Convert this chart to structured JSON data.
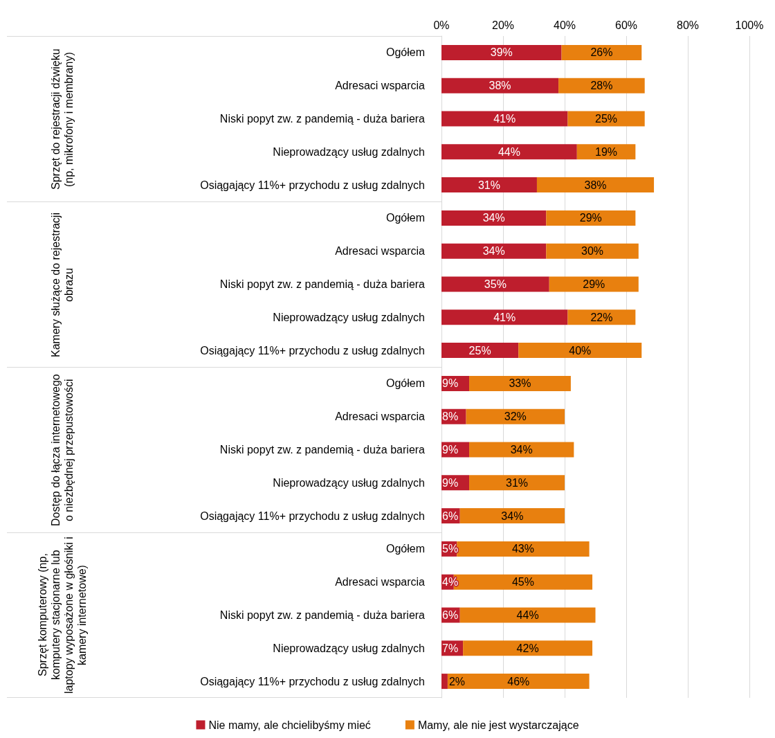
{
  "chart_data": {
    "type": "bar",
    "orientation": "horizontal",
    "stacked": true,
    "categories": [
      "Ogółem",
      "Adresaci wsparcia",
      "Niski popyt zw. z pandemią - duża bariera",
      "Nieprowadzący usług zdalnych",
      "Osiągający 11%+ przychodu z usług zdalnych",
      "Ogółem",
      "Adresaci wsparcia",
      "Niski popyt zw. z pandemią - duża bariera",
      "Nieprowadzący usług zdalnych",
      "Osiągający 11%+ przychodu z usług zdalnych",
      "Ogółem",
      "Adresaci wsparcia",
      "Niski popyt zw. z pandemią - duża bariera",
      "Nieprowadzący usług zdalnych",
      "Osiągający 11%+ przychodu z usług zdalnych",
      "Ogółem",
      "Adresaci wsparcia",
      "Niski popyt zw. z pandemią - duża bariera",
      "Nieprowadzący usług zdalnych",
      "Osiągający 11%+ przychodu z usług zdalnych"
    ],
    "series": [
      {
        "name": "Nie mamy, ale chcielibyśmy mieć",
        "color": "#be1e2d",
        "values": [
          39,
          38,
          41,
          44,
          31,
          34,
          34,
          35,
          41,
          25,
          9,
          8,
          9,
          9,
          6,
          5,
          4,
          6,
          7,
          2
        ],
        "value_labels": [
          "39%",
          "38%",
          "41%",
          "44%",
          "31%",
          "34%",
          "34%",
          "35%",
          "41%",
          "25%",
          "9%",
          "8%",
          "9%",
          "9%",
          "6%",
          "5%",
          "4%",
          "6%",
          "7%",
          "2%"
        ]
      },
      {
        "name": "Mamy, ale nie jest wystarczające",
        "color": "#e8800f",
        "values": [
          26,
          28,
          25,
          19,
          38,
          29,
          30,
          29,
          22,
          40,
          33,
          32,
          34,
          31,
          34,
          43,
          45,
          44,
          42,
          46
        ],
        "value_labels": [
          "26%",
          "28%",
          "25%",
          "19%",
          "38%",
          "29%",
          "30%",
          "29%",
          "22%",
          "40%",
          "33%",
          "32%",
          "34%",
          "31%",
          "34%",
          "43%",
          "45%",
          "44%",
          "42%",
          "46%"
        ]
      }
    ],
    "xlim": [
      0,
      100
    ],
    "xticks": [
      {
        "value": 0,
        "label": "0%"
      },
      {
        "value": 20,
        "label": "20%"
      },
      {
        "value": 40,
        "label": "40%"
      },
      {
        "value": 60,
        "label": "60%"
      },
      {
        "value": 80,
        "label": "80%"
      },
      {
        "value": 100,
        "label": "100%"
      }
    ],
    "grid": "x",
    "legend": "bottom",
    "annotations": [
      "Sprzęt do rejestracji dźwięku (np, mikrofony i membrany)",
      "Kamery służące do rejestracji obrazu",
      "Dostęp do łącza internetowego o niezbędnej przepustowości",
      "Sprzęt komputerowy (np, komputery stacjonarne lub laptopy wyposażone w głośniki i kamery internetowe)"
    ]
  }
}
